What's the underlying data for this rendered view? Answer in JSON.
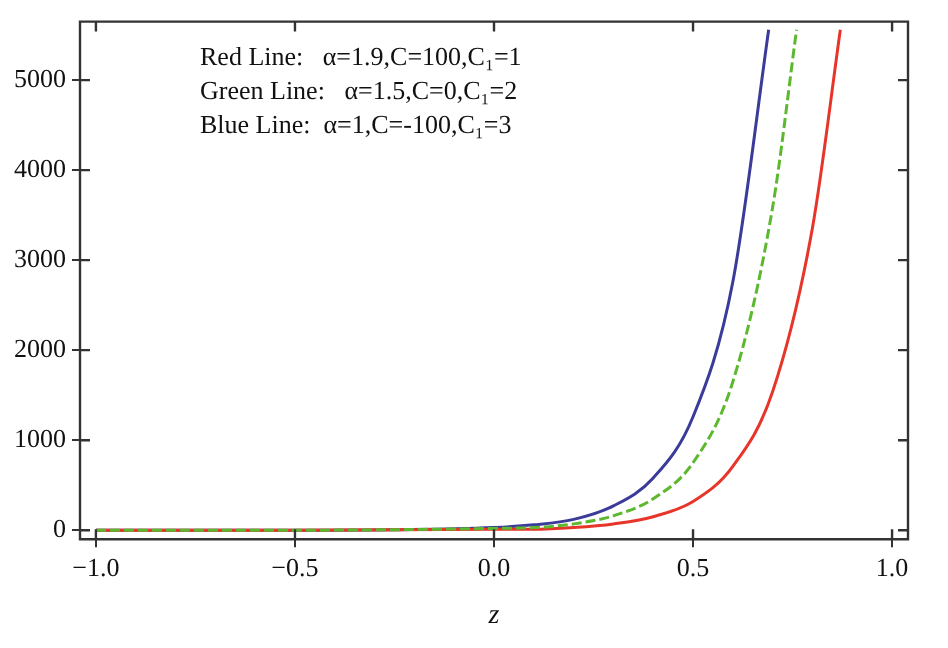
{
  "chart_data": {
    "type": "line",
    "xlabel": "z",
    "xlim": [
      -1.04,
      1.04
    ],
    "xticks": [
      {
        "value": -1,
        "label": "−1.0"
      },
      {
        "value": -0.5,
        "label": "−0.5"
      },
      {
        "value": 0,
        "label": "0.0"
      },
      {
        "value": 0.5,
        "label": "0.5"
      },
      {
        "value": 1,
        "label": "1.0"
      }
    ],
    "ylim": [
      -100,
      5650
    ],
    "yticks": [
      0,
      1000,
      2000,
      3000,
      4000,
      5000
    ],
    "grid": false,
    "legend": false,
    "marker": "none",
    "annotations": [
      "Red Line:   α=1.9,C=100,C₁=1",
      "Green Line:   α=1.5,C=0,C₁=2",
      "Blue Line:  α=1,C=-100,C₁=3"
    ],
    "series": [
      {
        "color": "#e8352a",
        "line_style": "solid",
        "x": [
          -1,
          -0.5,
          0,
          0.1,
          0.2,
          0.3,
          0.4,
          0.5,
          0.6,
          0.7,
          0.8,
          0.87
        ],
        "values": [
          0,
          0,
          10,
          10,
          30,
          70,
          150,
          320,
          710,
          1540,
          3360,
          5560
        ]
      },
      {
        "color": "#5cb82e",
        "line_style": "dashed",
        "x": [
          -1,
          -0.5,
          0,
          0.1,
          0.2,
          0.3,
          0.4,
          0.5,
          0.6,
          0.7,
          0.76
        ],
        "values": [
          0,
          0,
          20,
          30,
          70,
          160,
          350,
          750,
          1650,
          3590,
          5560
        ]
      },
      {
        "color": "#3b3b9a",
        "line_style": "solid",
        "x": [
          -1,
          -0.5,
          0,
          0.1,
          0.2,
          0.3,
          0.4,
          0.5,
          0.6,
          0.69
        ],
        "values": [
          0,
          0,
          30,
          60,
          120,
          270,
          580,
          1260,
          2760,
          5560
        ]
      }
    ]
  }
}
